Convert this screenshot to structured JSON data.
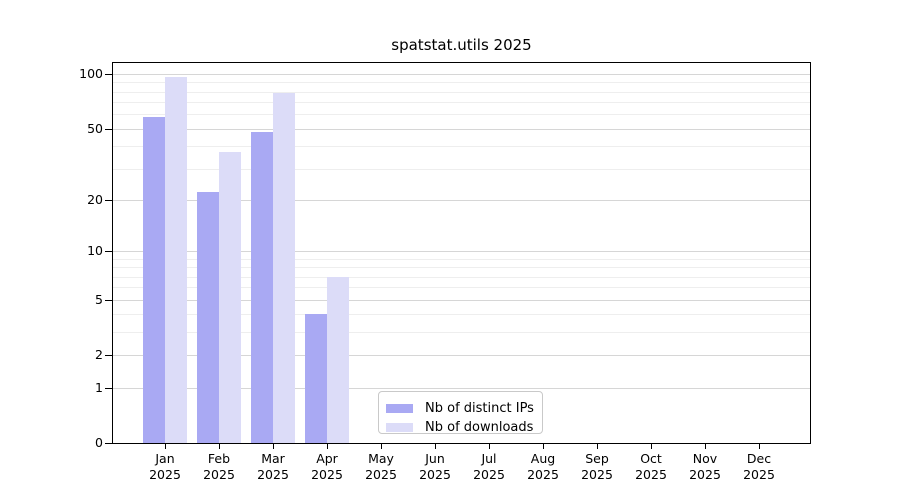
{
  "chart_data": {
    "type": "bar",
    "title": "spatstat.utils 2025",
    "categories": [
      "Jan",
      "Feb",
      "Mar",
      "Apr",
      "May",
      "Jun",
      "Jul",
      "Aug",
      "Sep",
      "Oct",
      "Nov",
      "Dec"
    ],
    "category_year": "2025",
    "series": [
      {
        "name": "Nb of distinct IPs",
        "color": "#a9a9f3",
        "values": [
          58,
          22,
          48,
          4,
          null,
          null,
          null,
          null,
          null,
          null,
          null,
          null
        ]
      },
      {
        "name": "Nb of downloads",
        "color": "#dcdcf8",
        "values": [
          96,
          37,
          79,
          7,
          null,
          null,
          null,
          null,
          null,
          null,
          null,
          null
        ]
      }
    ],
    "y_scale": "log1p",
    "ylim": [
      0,
      116.5
    ],
    "y_tick_values": [
      0,
      1,
      2,
      5,
      10,
      20,
      50,
      100
    ],
    "y_minor_gridlines": [
      3,
      4,
      6,
      7,
      8,
      9,
      30,
      40,
      60,
      70,
      80,
      90
    ],
    "grid": true,
    "legend_position": "lower center",
    "xlabel": "",
    "ylabel": ""
  },
  "colors": {
    "axis": "#000000",
    "major_grid": "#d6d6d6",
    "minor_grid": "#eeeeee",
    "background": "#ffffff",
    "legend_border": "#c9c9c9"
  }
}
